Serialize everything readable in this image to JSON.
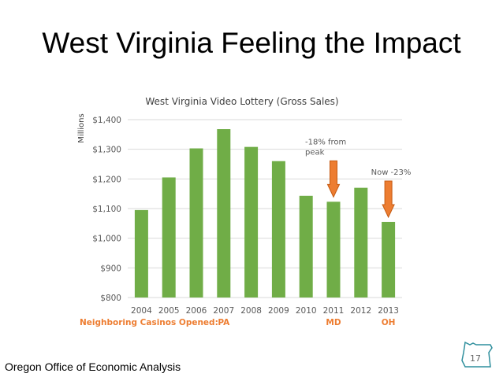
{
  "slide": {
    "title": "West Virginia Feeling the Impact",
    "footer": "Oregon Office of Economic Analysis",
    "page_number": "17"
  },
  "chart_data": {
    "type": "bar",
    "title": "West Virginia Video Lottery (Gross Sales)",
    "ylabel": "Millions",
    "xlabel": "",
    "categories": [
      "2004",
      "2005",
      "2006",
      "2007",
      "2008",
      "2009",
      "2010",
      "2011",
      "2012",
      "2013"
    ],
    "values": [
      1095,
      1205,
      1303,
      1368,
      1308,
      1260,
      1143,
      1123,
      1170,
      1055
    ],
    "ylim": [
      800,
      1400
    ],
    "yticks": [
      800,
      900,
      1000,
      1100,
      1200,
      1300,
      1400
    ],
    "ytick_labels": [
      "$800",
      "$900",
      "$1,000",
      "$1,100",
      "$1,200",
      "$1,300",
      "$1,400"
    ],
    "grid": true,
    "bar_color": "#70AD47",
    "annotations": [
      {
        "text_lines": [
          "-18% from",
          "peak"
        ],
        "category": "2011",
        "arrow_color": "#ED7D31"
      },
      {
        "text_lines": [
          "Now -23%"
        ],
        "category": "2013",
        "arrow_color": "#ED7D31"
      }
    ],
    "neighbor_casinos": {
      "label": "Neighboring Casinos Opened:",
      "markers": [
        {
          "category": "2007",
          "state": "PA"
        },
        {
          "category": "2011",
          "state": "MD"
        },
        {
          "category": "2013",
          "state": "OH"
        }
      ],
      "color": "#ED7D31"
    }
  }
}
